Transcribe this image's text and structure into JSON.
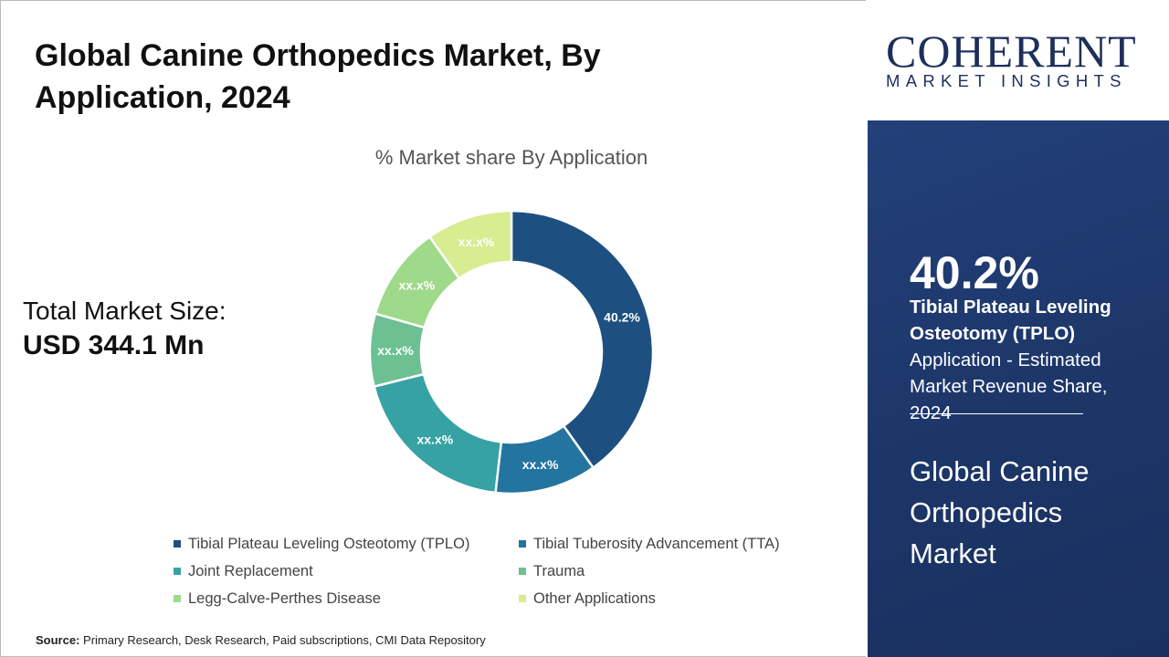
{
  "title": "Global Canine Orthopedics Market, By Application, 2024",
  "total_market": {
    "label": "Total Market Size:",
    "value": "USD 344.1 Mn"
  },
  "source": {
    "label": "Source:",
    "text": " Primary Research, Desk Research, Paid subscriptions, CMI Data Repository"
  },
  "logo": {
    "line1": "COHERENT",
    "line2": "MARKET INSIGHTS"
  },
  "highlight": {
    "value": "40.2%",
    "segment": "Tibial Plateau Leveling Osteotomy (TPLO)",
    "desc": "Application - Estimated Market Revenue Share, 2024",
    "market": "Global Canine Orthopedics Market"
  },
  "chart_data": {
    "type": "pie",
    "donut": true,
    "title": "% Market share By Application",
    "categories": [
      "Tibial Plateau Leveling Osteotomy (TPLO)",
      "Tibial Tuberosity Advancement (TTA)",
      "Joint Replacement",
      "Trauma",
      "Legg-Calve-Perthes Disease",
      "Other Applications"
    ],
    "values": [
      40.2,
      11.6,
      19.3,
      8.3,
      10.8,
      9.8
    ],
    "labels": [
      "40.2%",
      "xx.x%",
      "xx.x%",
      "xx.x%",
      "xx.x%",
      "xx.x%"
    ],
    "colors": [
      "#1d5080",
      "#2474a0",
      "#37a2a3",
      "#6cc091",
      "#9fd98a",
      "#d8ec90"
    ],
    "legend_position": "bottom"
  }
}
